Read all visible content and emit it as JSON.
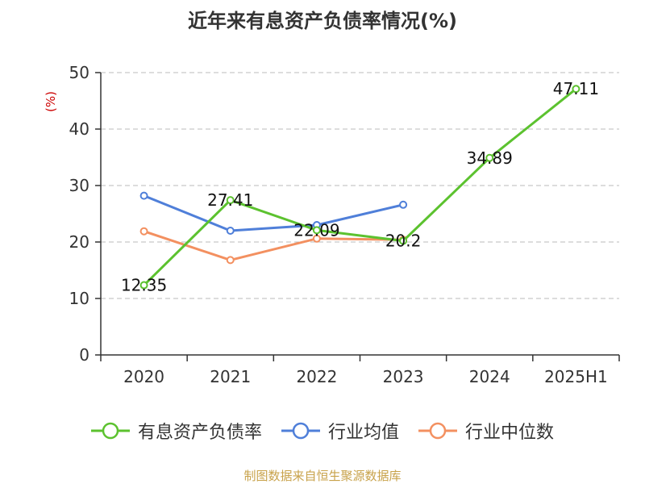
{
  "chart_data": {
    "type": "line",
    "title": "近年来有息资产负债率情况(%)",
    "ylabel": "(%)",
    "xlabel": "",
    "categories": [
      "2020",
      "2021",
      "2022",
      "2023",
      "2024",
      "2025H1"
    ],
    "ylim": [
      0,
      50
    ],
    "yticks": [
      0,
      10,
      20,
      30,
      40,
      50
    ],
    "grid": true,
    "legend_position": "bottom",
    "series": [
      {
        "name": "有息资产负债率",
        "color": "#5cc22f",
        "values": [
          12.35,
          27.41,
          22.09,
          20.2,
          34.89,
          47.11
        ],
        "labels": [
          "12.35",
          "27.41",
          "22.09",
          "20.2",
          "34.89",
          "47.11"
        ]
      },
      {
        "name": "行业均值",
        "color": "#4f7fd9",
        "values": [
          28.2,
          22.0,
          23.0,
          26.6,
          null,
          null
        ]
      },
      {
        "name": "行业中位数",
        "color": "#f39060",
        "values": [
          21.9,
          16.8,
          20.6,
          20.4,
          null,
          null
        ]
      }
    ]
  },
  "source": "制图数据来自恒生聚源数据库"
}
